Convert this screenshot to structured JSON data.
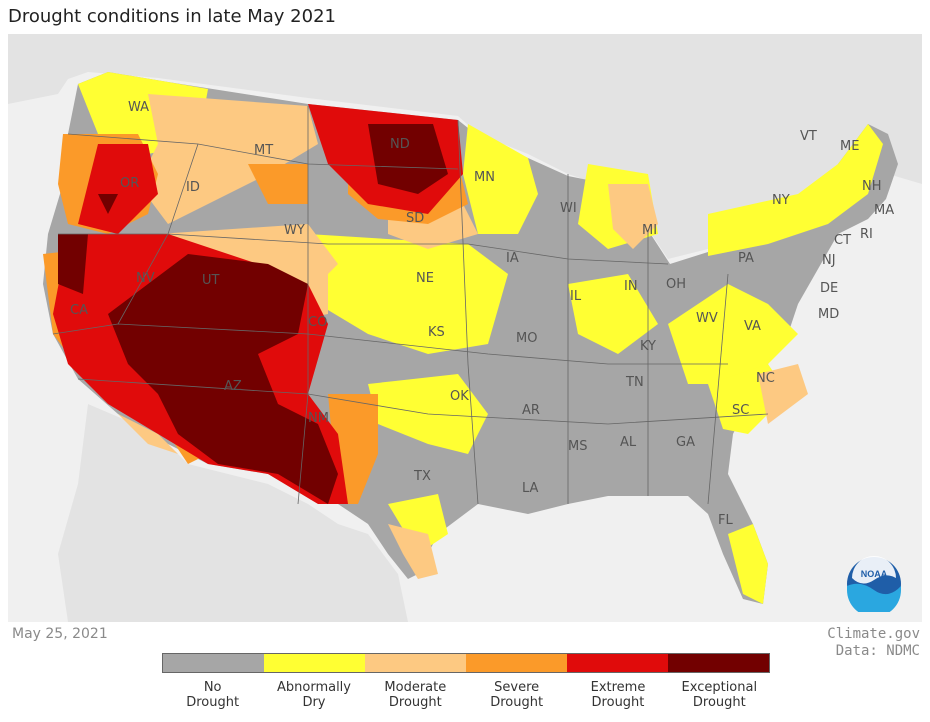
{
  "title": "Drought conditions in late May 2021",
  "date": "May 25, 2021",
  "credit": {
    "source": "Climate.gov",
    "data": "Data: NDMC"
  },
  "logo": {
    "text": "NOAA",
    "icon": "noaa-logo-icon"
  },
  "colors": {
    "no_drought": "#a6a6a6",
    "abnormally_dry": "#ffff33",
    "moderate": "#fdc982",
    "severe": "#fb9a29",
    "extreme": "#e00b0b",
    "exceptional": "#720000",
    "land_outside": "#e3e3e3",
    "water": "#f0f0f0"
  },
  "legend": [
    {
      "label_1": "No",
      "label_2": "Drought",
      "color": "#a6a6a6"
    },
    {
      "label_1": "Abnormally",
      "label_2": "Dry",
      "color": "#ffff33"
    },
    {
      "label_1": "Moderate",
      "label_2": "Drought",
      "color": "#fdc982"
    },
    {
      "label_1": "Severe",
      "label_2": "Drought",
      "color": "#fb9a29"
    },
    {
      "label_1": "Extreme",
      "label_2": "Drought",
      "color": "#e00b0b"
    },
    {
      "label_1": "Exceptional",
      "label_2": "Drought",
      "color": "#720000"
    }
  ],
  "states": [
    "WA",
    "OR",
    "CA",
    "ID",
    "NV",
    "MT",
    "WY",
    "UT",
    "AZ",
    "CO",
    "NM",
    "ND",
    "SD",
    "NE",
    "KS",
    "OK",
    "TX",
    "MN",
    "IA",
    "MO",
    "AR",
    "LA",
    "WI",
    "IL",
    "MS",
    "MI",
    "IN",
    "KY",
    "TN",
    "AL",
    "OH",
    "GA",
    "WV",
    "FL",
    "PA",
    "VA",
    "NC",
    "SC",
    "NY",
    "VT",
    "ME",
    "NH",
    "MA",
    "CT",
    "RI",
    "NJ",
    "DE",
    "MD"
  ]
}
